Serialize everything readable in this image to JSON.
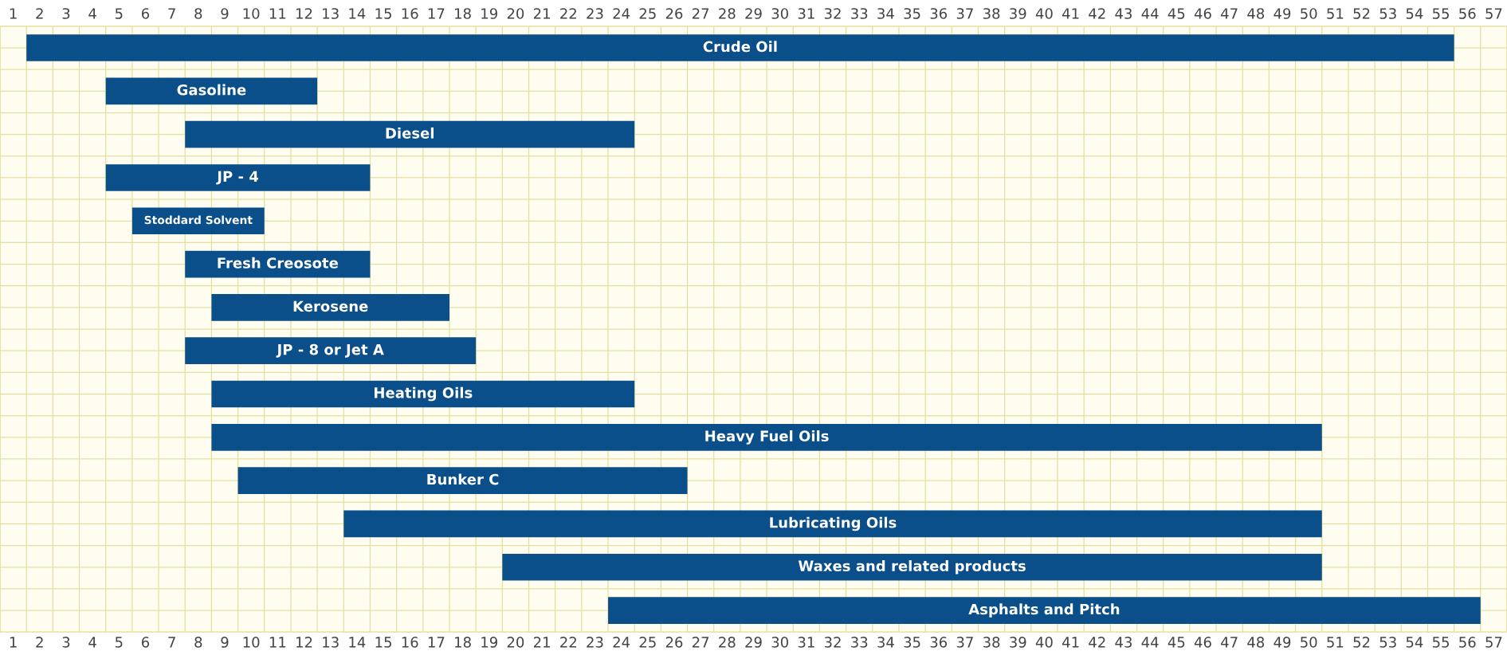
{
  "chart_data": {
    "type": "bar",
    "orientation": "horizontal",
    "categories": [
      "Crude Oil",
      "Gasoline",
      "Diesel",
      "JP - 4",
      "Stoddard Solvent",
      "Fresh Creosote",
      "Kerosene",
      "JP - 8 or Jet A",
      "Heating Oils",
      "Heavy Fuel Oils",
      "Bunker C",
      "Lubricating Oils",
      "Waxes and related products",
      "Asphalts and Pitch"
    ],
    "base": [
      1.5,
      4.5,
      7.5,
      4.5,
      5.5,
      7.5,
      8.5,
      7.5,
      8.5,
      8.5,
      9.5,
      13.5,
      19.5,
      23.5
    ],
    "values": [
      54,
      8,
      17,
      10,
      5,
      7,
      9,
      11,
      16,
      42,
      17,
      37,
      31,
      33
    ],
    "color": "#0b4f8a",
    "xlim": [
      0.5,
      57.5
    ],
    "xticks": [
      1,
      2,
      3,
      4,
      5,
      6,
      7,
      8,
      9,
      10,
      11,
      12,
      13,
      14,
      15,
      16,
      17,
      18,
      19,
      20,
      21,
      22,
      23,
      24,
      25,
      26,
      27,
      28,
      29,
      30,
      31,
      32,
      33,
      34,
      35,
      36,
      37,
      38,
      39,
      40,
      41,
      42,
      43,
      44,
      45,
      46,
      47,
      48,
      49,
      50,
      51,
      52,
      53,
      54,
      55,
      56,
      57
    ],
    "x2lim": [
      0.5,
      57.5
    ],
    "x2ticks": [
      1,
      2,
      3,
      4,
      5,
      6,
      7,
      8,
      9,
      10,
      11,
      12,
      13,
      14,
      15,
      16,
      17,
      18,
      19,
      20,
      21,
      22,
      23,
      24,
      25,
      26,
      27,
      28,
      29,
      30,
      31,
      32,
      33,
      34,
      35,
      36,
      37,
      38,
      39,
      40,
      41,
      42,
      43,
      44,
      45,
      46,
      47,
      48,
      49,
      50,
      51,
      52,
      53,
      54,
      55,
      56,
      57
    ],
    "tick_labels": "x",
    "grid": true
  }
}
